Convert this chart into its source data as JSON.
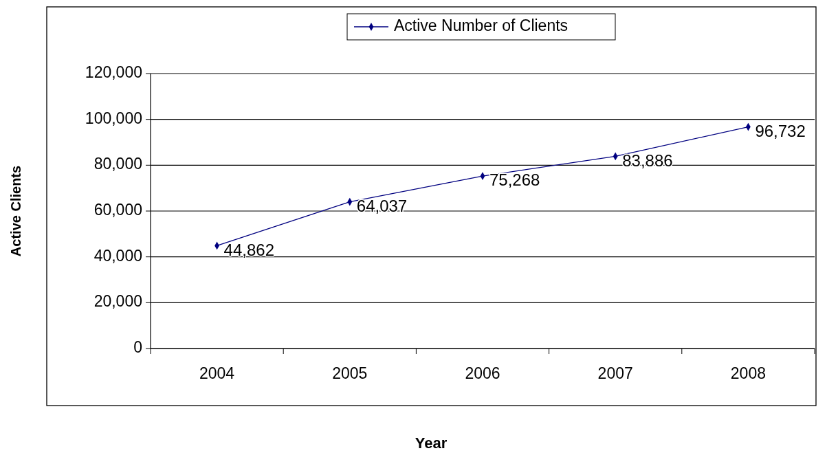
{
  "chart_data": {
    "type": "line",
    "xlabel": "Year",
    "ylabel": "Active Clients",
    "categories": [
      "2004",
      "2005",
      "2006",
      "2007",
      "2008"
    ],
    "series": [
      {
        "name": "Active Number of Clients",
        "color": "#000080",
        "values": [
          44862,
          64037,
          75268,
          83886,
          96732
        ],
        "value_labels": [
          "44,862",
          "64,037",
          "75,268",
          "83,886",
          "96,732"
        ]
      }
    ],
    "ylim": [
      0,
      120000
    ],
    "yticks": [
      {
        "value": 0,
        "label": "0"
      },
      {
        "value": 20000,
        "label": "20,000"
      },
      {
        "value": 40000,
        "label": "40,000"
      },
      {
        "value": 60000,
        "label": "60,000"
      },
      {
        "value": 80000,
        "label": "80,000"
      },
      {
        "value": 100000,
        "label": "100,000"
      },
      {
        "value": 120000,
        "label": "120,000"
      }
    ],
    "grid": "y",
    "legend": "top",
    "marker": "diamond"
  }
}
